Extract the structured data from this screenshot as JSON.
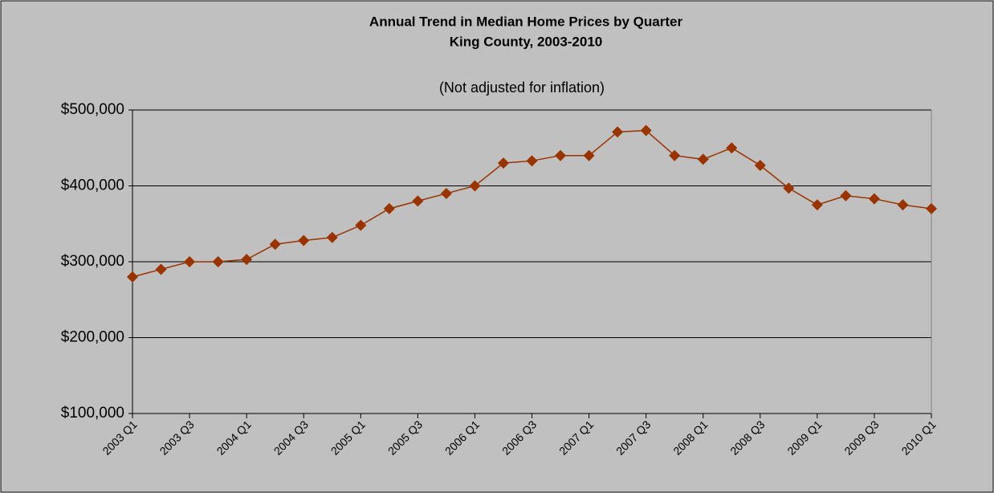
{
  "chart_data": {
    "type": "line",
    "title": "Annual Trend in Median Home Prices by Quarter",
    "subtitle": "King County, 2003-2010",
    "note": "(Not adjusted for inflation)",
    "categories": [
      "2003 Q1",
      null,
      "2003 Q3",
      null,
      "2004 Q1",
      null,
      "2004 Q3",
      null,
      "2005 Q1",
      null,
      "2005 Q3",
      null,
      "2006 Q1",
      null,
      "2006 Q3",
      null,
      "2007 Q1",
      null,
      "2007 Q3",
      null,
      "2008 Q1",
      null,
      "2008 Q3",
      null,
      "2009 Q1",
      null,
      "2009 Q3",
      null,
      "2010 Q1"
    ],
    "values": [
      280000,
      290000,
      300000,
      300000,
      303000,
      323000,
      328000,
      332000,
      348000,
      370000,
      380000,
      390000,
      400000,
      430000,
      433000,
      440000,
      440000,
      471000,
      473000,
      440000,
      435000,
      450000,
      427000,
      397000,
      375000,
      387000,
      383000,
      375000,
      370000
    ],
    "color": "#993300",
    "ylim": [
      100000,
      500000
    ],
    "yticks": [
      {
        "value": 100000,
        "label": "$100,000"
      },
      {
        "value": 200000,
        "label": "$200,000"
      },
      {
        "value": 300000,
        "label": "$300,000"
      },
      {
        "value": 400000,
        "label": "$400,000"
      },
      {
        "value": 500000,
        "label": "$500,000"
      }
    ],
    "grid": true
  }
}
